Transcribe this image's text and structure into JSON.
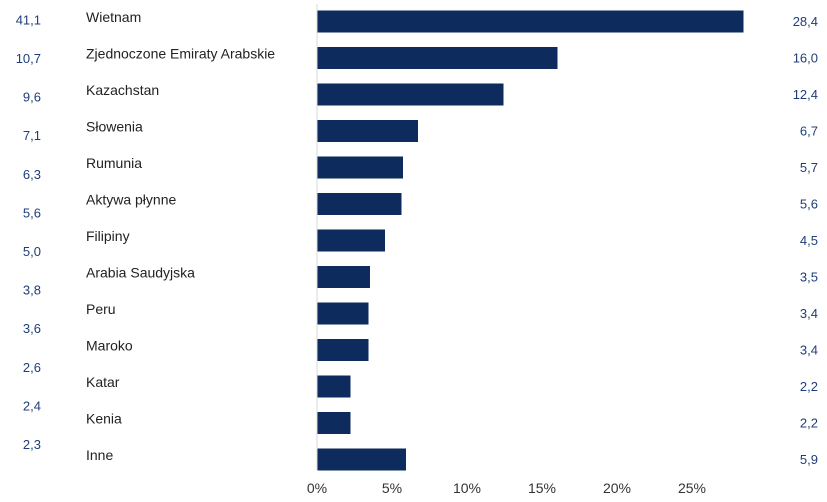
{
  "colors": {
    "bar": "#0d2b5c",
    "value_text": "#1f3d7a",
    "axis": "#d9d9d9"
  },
  "chart_data": {
    "type": "bar",
    "orientation": "horizontal",
    "categories": [
      "Wietnam",
      "Zjednoczone Emiraty Arabskie",
      "Kazachstan",
      "Słowenia",
      "Rumunia",
      "Aktywa płynne",
      "Filipiny",
      "Arabia Saudyjska",
      "Peru",
      "Maroko",
      "Katar",
      "Kenia",
      "Inne"
    ],
    "left_values": [
      "41,1",
      "10,7",
      "9,6",
      "7,1",
      "6,3",
      "5,6",
      "5,0",
      "3,8",
      "3,6",
      "2,6",
      "2,4",
      "2,3"
    ],
    "right_values": [
      "28,4",
      "16,0",
      "12,4",
      "6,7",
      "5,7",
      "5,6",
      "4,5",
      "3,5",
      "3,4",
      "3,4",
      "2,2",
      "2,2",
      "5,9"
    ],
    "series": [
      {
        "values": [
          28.4,
          16.0,
          12.4,
          6.7,
          5.7,
          5.6,
          4.5,
          3.5,
          3.4,
          3.4,
          2.2,
          2.2,
          5.9
        ]
      }
    ],
    "xlim": [
      0,
      30
    ],
    "xticks": [
      0,
      5,
      10,
      15,
      20,
      25
    ],
    "xtick_labels": [
      "0%",
      "5%",
      "10%",
      "15%",
      "20%",
      "25%"
    ],
    "title": "",
    "xlabel": "",
    "ylabel": "",
    "grid": false,
    "legend": "none"
  }
}
